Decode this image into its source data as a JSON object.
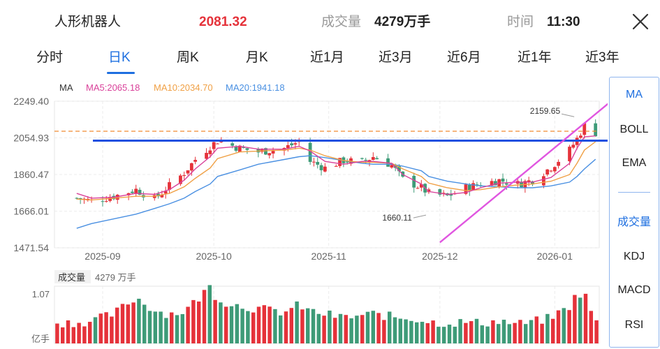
{
  "header": {
    "stock_name": "人形机器人",
    "price": "2081.32",
    "volume_label": "成交量",
    "volume": "4279万手",
    "time_label": "时间",
    "time": "11:30",
    "close_icon": "close-icon"
  },
  "tabs": [
    "分时",
    "日K",
    "周K",
    "月K",
    "近1月",
    "近3月",
    "近6月",
    "近1年",
    "近3年"
  ],
  "active_tab": "日K",
  "side_panel": {
    "main_indicators": [
      "MA",
      "BOLL",
      "EMA"
    ],
    "sub_indicators": [
      "成交量",
      "KDJ",
      "MACD",
      "RSI"
    ],
    "active_main": "MA",
    "active_sub": "成交量"
  },
  "colors": {
    "up": "#e5323a",
    "down": "#3e9b78",
    "ma5": "#d9419a",
    "ma10": "#f0a045",
    "ma20": "#4a90e2",
    "accent": "#1e6fe0",
    "support_line": "#1e50e0",
    "trend_line": "#e056e0",
    "reference_line": "#f08a30"
  },
  "chart_data": {
    "type": "candlestick",
    "legend": {
      "label": "MA",
      "ma5": "MA5:2065.18",
      "ma10": "MA10:2034.70",
      "ma20": "MA20:1941.18"
    },
    "y_ticks": [
      "2249.40",
      "2054.93",
      "1860.47",
      "1666.01",
      "1471.54"
    ],
    "ylim": [
      1471.54,
      2249.4
    ],
    "x_ticks": [
      {
        "label": "2025-09",
        "date": "2025-09-01"
      },
      {
        "label": "2025-10",
        "date": "2025-10-01"
      },
      {
        "label": "2025-11",
        "date": "2025-11-01"
      },
      {
        "label": "2025-12",
        "date": "2025-12-01"
      },
      {
        "label": "2026-01",
        "date": "2026-01-01"
      }
    ],
    "annotations": {
      "high": {
        "text": "2159.65",
        "value": 2159.65,
        "date": "2026-01-07"
      },
      "low": {
        "text": "1660.11",
        "value": 1660.11,
        "date": "2025-11-28"
      }
    },
    "reference_line": 2090,
    "support_line": 2040,
    "trend_line": [
      {
        "date": "2025-12-01",
        "value": 1500
      },
      {
        "date": "2026-01-15",
        "value": 2230
      }
    ],
    "series_close": [
      {
        "date": "2025-08-25",
        "close": 1735
      },
      {
        "date": "2025-08-29",
        "close": 1720
      },
      {
        "date": "2025-09-04",
        "close": 1745
      },
      {
        "date": "2025-09-10",
        "close": 1780
      },
      {
        "date": "2025-09-15",
        "close": 1730
      },
      {
        "date": "2025-09-19",
        "close": 1800
      },
      {
        "date": "2025-09-23",
        "close": 1870
      },
      {
        "date": "2025-09-26",
        "close": 1940
      },
      {
        "date": "2025-09-30",
        "close": 2010
      },
      {
        "date": "2025-10-02",
        "close": 2040
      },
      {
        "date": "2025-10-08",
        "close": 2000
      },
      {
        "date": "2025-10-13",
        "close": 1980
      },
      {
        "date": "2025-10-20",
        "close": 2000
      },
      {
        "date": "2025-10-24",
        "close": 2035
      },
      {
        "date": "2025-10-27",
        "close": 1930
      },
      {
        "date": "2025-10-31",
        "close": 1895
      },
      {
        "date": "2025-11-05",
        "close": 1935
      },
      {
        "date": "2025-11-10",
        "close": 1925
      },
      {
        "date": "2025-11-13",
        "close": 1955
      },
      {
        "date": "2025-11-18",
        "close": 1910
      },
      {
        "date": "2025-11-21",
        "close": 1835
      },
      {
        "date": "2025-11-26",
        "close": 1790
      },
      {
        "date": "2025-11-28",
        "close": 1760
      },
      {
        "date": "2025-12-03",
        "close": 1745
      },
      {
        "date": "2025-12-08",
        "close": 1790
      },
      {
        "date": "2025-12-12",
        "close": 1810
      },
      {
        "date": "2025-12-17",
        "close": 1830
      },
      {
        "date": "2025-12-22",
        "close": 1810
      },
      {
        "date": "2025-12-26",
        "close": 1830
      },
      {
        "date": "2025-12-31",
        "close": 1900
      },
      {
        "date": "2026-01-05",
        "close": 1990
      },
      {
        "date": "2026-01-07",
        "close": 2050
      },
      {
        "date": "2026-01-09",
        "close": 2120
      },
      {
        "date": "2026-01-12",
        "close": 2081.32
      }
    ],
    "ma5": [
      1760,
      1735,
      1740,
      1760,
      1755,
      1780,
      1830,
      1890,
      1955,
      2000,
      2010,
      1995,
      1995,
      2010,
      1985,
      1930,
      1915,
      1930,
      1930,
      1920,
      1860,
      1810,
      1770,
      1755,
      1765,
      1790,
      1815,
      1820,
      1820,
      1845,
      1920,
      2000,
      2060,
      2065.18
    ],
    "ma10": [
      1730,
      1725,
      1735,
      1745,
      1745,
      1760,
      1795,
      1840,
      1895,
      1945,
      1980,
      1985,
      1990,
      2000,
      1990,
      1960,
      1935,
      1925,
      1925,
      1920,
      1890,
      1850,
      1815,
      1790,
      1775,
      1780,
      1795,
      1805,
      1810,
      1825,
      1860,
      1920,
      1990,
      2034.7
    ],
    "ma20": [
      1575,
      1600,
      1625,
      1650,
      1680,
      1705,
      1735,
      1770,
      1810,
      1850,
      1885,
      1915,
      1940,
      1955,
      1960,
      1950,
      1935,
      1920,
      1915,
      1915,
      1905,
      1880,
      1850,
      1825,
      1810,
      1800,
      1795,
      1790,
      1790,
      1800,
      1820,
      1850,
      1890,
      1941.18
    ],
    "volume": {
      "label": "成交量",
      "value_text": "4279 万手",
      "y_max_text": "1.07",
      "unit_text": "亿手",
      "y_max": 1.07,
      "bars": [
        {
          "date": "2025-08-25",
          "value": 0.39,
          "dir": "up"
        },
        {
          "date": "2025-08-29",
          "value": 0.42,
          "dir": "down"
        },
        {
          "date": "2025-09-04",
          "value": 0.55,
          "dir": "up"
        },
        {
          "date": "2025-09-10",
          "value": 0.86,
          "dir": "down"
        },
        {
          "date": "2025-09-15",
          "value": 0.62,
          "dir": "down"
        },
        {
          "date": "2025-09-19",
          "value": 0.55,
          "dir": "up"
        },
        {
          "date": "2025-09-23",
          "value": 0.6,
          "dir": "up"
        },
        {
          "date": "2025-09-26",
          "value": 0.78,
          "dir": "up"
        },
        {
          "date": "2025-09-30",
          "value": 1.07,
          "dir": "down"
        },
        {
          "date": "2025-10-02",
          "value": 0.82,
          "dir": "up"
        },
        {
          "date": "2025-10-08",
          "value": 0.7,
          "dir": "down"
        },
        {
          "date": "2025-10-13",
          "value": 0.65,
          "dir": "up"
        },
        {
          "date": "2025-10-20",
          "value": 0.58,
          "dir": "down"
        },
        {
          "date": "2025-10-24",
          "value": 0.72,
          "dir": "up"
        },
        {
          "date": "2025-10-27",
          "value": 0.6,
          "dir": "down"
        },
        {
          "date": "2025-10-31",
          "value": 0.55,
          "dir": "down"
        },
        {
          "date": "2025-11-05",
          "value": 0.48,
          "dir": "up"
        },
        {
          "date": "2025-11-10",
          "value": 0.52,
          "dir": "up"
        },
        {
          "date": "2025-11-13",
          "value": 0.55,
          "dir": "up"
        },
        {
          "date": "2025-11-18",
          "value": 0.5,
          "dir": "down"
        },
        {
          "date": "2025-11-21",
          "value": 0.48,
          "dir": "down"
        },
        {
          "date": "2025-11-26",
          "value": 0.45,
          "dir": "down"
        },
        {
          "date": "2025-11-28",
          "value": 0.4,
          "dir": "up"
        },
        {
          "date": "2025-12-03",
          "value": 0.38,
          "dir": "down"
        },
        {
          "date": "2025-12-08",
          "value": 0.4,
          "dir": "up"
        },
        {
          "date": "2025-12-12",
          "value": 0.38,
          "dir": "down"
        },
        {
          "date": "2025-12-17",
          "value": 0.42,
          "dir": "up"
        },
        {
          "date": "2025-12-22",
          "value": 0.36,
          "dir": "down"
        },
        {
          "date": "2025-12-26",
          "value": 0.4,
          "dir": "up"
        },
        {
          "date": "2025-12-31",
          "value": 0.48,
          "dir": "up"
        },
        {
          "date": "2026-01-05",
          "value": 0.7,
          "dir": "up"
        },
        {
          "date": "2026-01-07",
          "value": 0.92,
          "dir": "up"
        },
        {
          "date": "2026-01-09",
          "value": 0.93,
          "dir": "down"
        },
        {
          "date": "2026-01-12",
          "value": 0.4,
          "dir": "up"
        }
      ]
    }
  }
}
